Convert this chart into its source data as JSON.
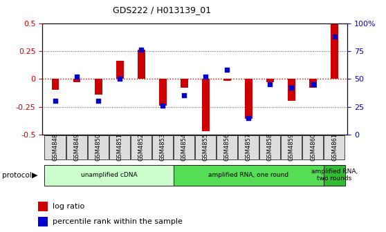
{
  "title": "GDS222 / H013139_01",
  "samples": [
    "GSM4848",
    "GSM4849",
    "GSM4850",
    "GSM4851",
    "GSM4852",
    "GSM4853",
    "GSM4854",
    "GSM4855",
    "GSM4856",
    "GSM4857",
    "GSM4858",
    "GSM4859",
    "GSM4860",
    "GSM4861"
  ],
  "log_ratio": [
    -0.1,
    -0.03,
    -0.14,
    0.16,
    0.26,
    -0.24,
    -0.08,
    -0.47,
    -0.02,
    -0.36,
    -0.03,
    -0.2,
    -0.08,
    0.5
  ],
  "percentile": [
    30,
    52,
    30,
    50,
    76,
    26,
    35,
    52,
    58,
    15,
    45,
    42,
    45,
    88
  ],
  "ylim_left": [
    -0.5,
    0.5
  ],
  "ylim_right": [
    0,
    100
  ],
  "yticks_left": [
    -0.5,
    -0.25,
    0,
    0.25,
    0.5
  ],
  "yticks_right": [
    0,
    25,
    50,
    75,
    100
  ],
  "ytick_labels_right": [
    "0",
    "25",
    "50",
    "75",
    "100%"
  ],
  "bar_color": "#cc0000",
  "dot_color": "#0000cc",
  "dot_size": 25,
  "bar_width": 0.35,
  "protocols": [
    {
      "label": "unamplified cDNA",
      "start": 0,
      "end": 5,
      "color": "#ccffcc"
    },
    {
      "label": "amplified RNA, one round",
      "start": 6,
      "end": 12,
      "color": "#55dd55"
    },
    {
      "label": "amplified RNA,\ntwo rounds",
      "start": 13,
      "end": 13,
      "color": "#33bb33"
    }
  ],
  "protocol_label": "protocol",
  "legend_items": [
    {
      "label": "log ratio",
      "color": "#cc0000"
    },
    {
      "label": "percentile rank within the sample",
      "color": "#0000cc"
    }
  ],
  "hline_color": "#cc0000",
  "grid_color": "#555555",
  "bg_color": "#ffffff"
}
